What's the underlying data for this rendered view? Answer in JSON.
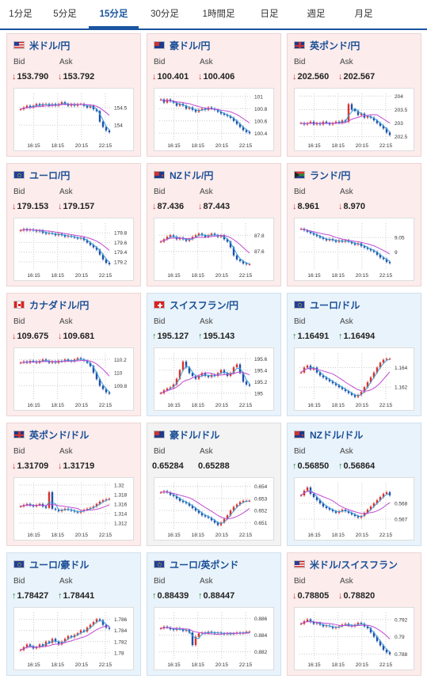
{
  "tabs": [
    {
      "label": "1分足",
      "active": false
    },
    {
      "label": "5分足",
      "active": false
    },
    {
      "label": "15分足",
      "active": true
    },
    {
      "label": "30分足",
      "active": false
    },
    {
      "label": "1時間足",
      "active": false
    },
    {
      "label": "日足",
      "active": false
    },
    {
      "label": "週足",
      "active": false
    },
    {
      "label": "月足",
      "active": false
    }
  ],
  "labels": {
    "bid": "Bid",
    "ask": "Ask"
  },
  "x_ticks": [
    "16:15",
    "18:15",
    "20:15",
    "22:15"
  ],
  "cards": [
    {
      "pair": "米ドル/円",
      "flag": "us-jp",
      "trend": "down",
      "bid": "153.790",
      "ask": "153.792",
      "yticks": [
        "154.5",
        "154"
      ],
      "yrange": [
        153.6,
        154.9
      ],
      "series": [
        154.45,
        154.5,
        154.55,
        154.5,
        154.55,
        154.6,
        154.55,
        154.6,
        154.6,
        154.55,
        154.6,
        154.55,
        154.6,
        154.65,
        154.6,
        154.55,
        154.6,
        154.55,
        154.6,
        154.6,
        154.55,
        154.5,
        154.55,
        154.45,
        154.4,
        154.1,
        153.95,
        153.85,
        153.8
      ]
    },
    {
      "pair": "豪ドル/円",
      "flag": "au-jp",
      "trend": "down",
      "bid": "100.401",
      "ask": "100.406",
      "yticks": [
        "101",
        "100.8",
        "100.6",
        "100.4"
      ],
      "yrange": [
        100.3,
        101.05
      ],
      "series": [
        100.95,
        100.9,
        100.95,
        100.92,
        100.9,
        100.85,
        100.88,
        100.85,
        100.8,
        100.82,
        100.78,
        100.75,
        100.78,
        100.8,
        100.78,
        100.82,
        100.8,
        100.78,
        100.75,
        100.72,
        100.7,
        100.68,
        100.65,
        100.6,
        100.55,
        100.5,
        100.45,
        100.42,
        100.4
      ]
    },
    {
      "pair": "英ポンド/円",
      "flag": "gb-jp",
      "trend": "down",
      "bid": "202.560",
      "ask": "202.567",
      "yticks": [
        "204",
        "203.5",
        "203",
        "202.5"
      ],
      "yrange": [
        202.4,
        204.1
      ],
      "series": [
        203.0,
        202.95,
        203.0,
        203.05,
        202.95,
        203.0,
        202.95,
        203.05,
        203.0,
        202.95,
        203.0,
        203.05,
        203.0,
        203.1,
        203.05,
        203.7,
        203.5,
        203.45,
        203.3,
        203.35,
        203.2,
        203.25,
        203.2,
        203.1,
        203.0,
        202.9,
        202.8,
        202.65,
        202.56
      ]
    },
    {
      "pair": "ユーロ/円",
      "flag": "eu-jp",
      "trend": "down",
      "bid": "179.153",
      "ask": "179.157",
      "yticks": [
        "179.8",
        "179.6",
        "179.4",
        "179.2"
      ],
      "yrange": [
        179.05,
        180.0
      ],
      "series": [
        179.85,
        179.88,
        179.85,
        179.87,
        179.85,
        179.83,
        179.85,
        179.8,
        179.78,
        179.8,
        179.78,
        179.75,
        179.78,
        179.75,
        179.72,
        179.74,
        179.72,
        179.7,
        179.68,
        179.7,
        179.65,
        179.6,
        179.55,
        179.5,
        179.45,
        179.35,
        179.25,
        179.18,
        179.15
      ]
    },
    {
      "pair": "NZドル/円",
      "flag": "nz-jp",
      "trend": "down",
      "bid": "87.436",
      "ask": "87.443",
      "yticks": [
        "87.8",
        "87.6"
      ],
      "yrange": [
        87.38,
        87.95
      ],
      "series": [
        87.72,
        87.75,
        87.78,
        87.8,
        87.78,
        87.75,
        87.77,
        87.75,
        87.73,
        87.75,
        87.78,
        87.8,
        87.82,
        87.8,
        87.78,
        87.8,
        87.82,
        87.8,
        87.78,
        87.8,
        87.75,
        87.72,
        87.65,
        87.55,
        87.5,
        87.48,
        87.45,
        87.44,
        87.44
      ]
    },
    {
      "pair": "ランド/円",
      "flag": "za-jp",
      "trend": "down",
      "bid": "8.961",
      "ask": "8.970",
      "yticks": [
        "9.05",
        "9"
      ],
      "yrange": [
        8.94,
        9.1
      ],
      "series": [
        9.08,
        9.075,
        9.07,
        9.065,
        9.06,
        9.055,
        9.05,
        9.045,
        9.04,
        9.045,
        9.04,
        9.035,
        9.04,
        9.035,
        9.04,
        9.035,
        9.03,
        9.025,
        9.03,
        9.02,
        9.015,
        9.01,
        9.005,
        9.0,
        8.99,
        8.98,
        8.975,
        8.965,
        8.961
      ]
    },
    {
      "pair": "カナダドル/円",
      "flag": "ca-jp",
      "trend": "down",
      "bid": "109.675",
      "ask": "109.681",
      "yticks": [
        "110.2",
        "110",
        "109.8"
      ],
      "yrange": [
        109.6,
        110.3
      ],
      "series": [
        110.15,
        110.17,
        110.15,
        110.18,
        110.17,
        110.15,
        110.18,
        110.2,
        110.18,
        110.15,
        110.17,
        110.15,
        110.18,
        110.17,
        110.2,
        110.18,
        110.17,
        110.2,
        110.22,
        110.2,
        110.18,
        110.15,
        110.1,
        110.0,
        109.9,
        109.8,
        109.75,
        109.7,
        109.68
      ]
    },
    {
      "pair": "スイスフラン/円",
      "flag": "ch-jp",
      "trend": "up",
      "bid": "195.127",
      "ask": "195.143",
      "yticks": [
        "195.6",
        "195.4",
        "195.2",
        "195"
      ],
      "yrange": [
        194.9,
        195.7
      ],
      "series": [
        195.0,
        195.05,
        195.08,
        195.1,
        195.15,
        195.25,
        195.4,
        195.55,
        195.45,
        195.35,
        195.3,
        195.25,
        195.3,
        195.35,
        195.3,
        195.28,
        195.32,
        195.3,
        195.35,
        195.4,
        195.35,
        195.3,
        195.35,
        195.45,
        195.5,
        195.35,
        195.2,
        195.15,
        195.13
      ]
    },
    {
      "pair": "ユーロ/ドル",
      "flag": "eu-us",
      "trend": "up",
      "bid": "1.16491",
      "ask": "1.16494",
      "yticks": [
        "1.164",
        "1.162"
      ],
      "yrange": [
        1.1608,
        1.1655
      ],
      "series": [
        1.1635,
        1.164,
        1.1642,
        1.1638,
        1.164,
        1.1635,
        1.1632,
        1.163,
        1.1628,
        1.1626,
        1.1624,
        1.1622,
        1.162,
        1.1618,
        1.1616,
        1.1614,
        1.1612,
        1.161,
        1.1612,
        1.1615,
        1.162,
        1.1625,
        1.163,
        1.1635,
        1.164,
        1.1645,
        1.1648,
        1.1649,
        1.1649
      ]
    },
    {
      "pair": "英ポンド/ドル",
      "flag": "gb-us",
      "trend": "down",
      "bid": "1.31709",
      "ask": "1.31719",
      "yticks": [
        "1.32",
        "1.318",
        "1.316",
        "1.314",
        "1.312"
      ],
      "yrange": [
        1.3108,
        1.3205
      ],
      "series": [
        1.3155,
        1.3158,
        1.316,
        1.3157,
        1.3155,
        1.3158,
        1.316,
        1.3155,
        1.3152,
        1.3185,
        1.315,
        1.3148,
        1.3145,
        1.3148,
        1.315,
        1.3148,
        1.3146,
        1.3144,
        1.3142,
        1.3145,
        1.3148,
        1.315,
        1.3152,
        1.3155,
        1.316,
        1.3165,
        1.3168,
        1.317,
        1.3171
      ]
    },
    {
      "pair": "豪ドル/ドル",
      "flag": "au-us",
      "trend": "flat",
      "bid": "0.65284",
      "ask": "0.65288",
      "yticks": [
        "0.654",
        "0.653",
        "0.652",
        "0.651"
      ],
      "yrange": [
        0.6505,
        0.6543
      ],
      "series": [
        0.6535,
        0.6536,
        0.6535,
        0.6533,
        0.6532,
        0.653,
        0.6528,
        0.6527,
        0.6526,
        0.6524,
        0.6522,
        0.652,
        0.6518,
        0.6516,
        0.6515,
        0.6514,
        0.6512,
        0.651,
        0.6508,
        0.651,
        0.6513,
        0.6516,
        0.652,
        0.6523,
        0.6525,
        0.6527,
        0.6528,
        0.6528,
        0.6528
      ]
    },
    {
      "pair": "NZドル/ドル",
      "flag": "nz-us",
      "trend": "up",
      "bid": "0.56850",
      "ask": "0.56864",
      "yticks": [
        "0.568",
        "0.567"
      ],
      "yrange": [
        0.5664,
        0.5693
      ],
      "series": [
        0.5685,
        0.5688,
        0.569,
        0.5686,
        0.5684,
        0.5682,
        0.568,
        0.5678,
        0.5677,
        0.5676,
        0.5675,
        0.5674,
        0.5675,
        0.5676,
        0.5675,
        0.5674,
        0.5673,
        0.5672,
        0.5671,
        0.5672,
        0.5674,
        0.5676,
        0.5678,
        0.568,
        0.5682,
        0.5684,
        0.5686,
        0.5687,
        0.5685
      ]
    },
    {
      "pair": "ユーロ/豪ドル",
      "flag": "eu-au",
      "trend": "up",
      "bid": "1.78427",
      "ask": "1.78441",
      "yticks": [
        "1.786",
        "1.784",
        "1.782",
        "1.78"
      ],
      "yrange": [
        1.779,
        1.7872
      ],
      "series": [
        1.7805,
        1.781,
        1.7815,
        1.7812,
        1.7808,
        1.781,
        1.7815,
        1.7812,
        1.782,
        1.7818,
        1.7825,
        1.782,
        1.7815,
        1.782,
        1.7825,
        1.783,
        1.7828,
        1.7832,
        1.7835,
        1.784,
        1.7838,
        1.7845,
        1.785,
        1.7855,
        1.786,
        1.7858,
        1.785,
        1.7845,
        1.7843
      ]
    },
    {
      "pair": "ユーロ/英ポンド",
      "flag": "eu-gb",
      "trend": "up",
      "bid": "0.88439",
      "ask": "0.88447",
      "yticks": [
        "0.886",
        "0.884",
        "0.882"
      ],
      "yrange": [
        0.8812,
        0.8867
      ],
      "series": [
        0.8848,
        0.885,
        0.8849,
        0.8847,
        0.8846,
        0.8848,
        0.8847,
        0.8845,
        0.8846,
        0.8843,
        0.8828,
        0.8838,
        0.8842,
        0.8843,
        0.8842,
        0.8844,
        0.8843,
        0.8842,
        0.8843,
        0.8842,
        0.8841,
        0.8842,
        0.8841,
        0.8842,
        0.8843,
        0.8842,
        0.8843,
        0.8844,
        0.8844
      ]
    },
    {
      "pair": "米ドル/スイスフラン",
      "flag": "us-ch",
      "trend": "down",
      "bid": "0.78805",
      "ask": "0.78820",
      "yticks": [
        "0.792",
        "0.79",
        "0.788"
      ],
      "yrange": [
        0.7875,
        0.7928
      ],
      "series": [
        0.7915,
        0.7918,
        0.792,
        0.7917,
        0.7915,
        0.7916,
        0.7914,
        0.7912,
        0.7913,
        0.7912,
        0.791,
        0.7911,
        0.7912,
        0.7914,
        0.7915,
        0.7913,
        0.7912,
        0.7914,
        0.7916,
        0.7915,
        0.7912,
        0.791,
        0.7905,
        0.79,
        0.7895,
        0.789,
        0.7885,
        0.7882,
        0.788
      ]
    }
  ]
}
